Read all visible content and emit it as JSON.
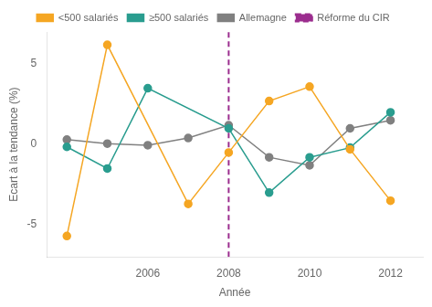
{
  "chart_data": {
    "type": "line",
    "xlabel": "Année",
    "ylabel": "Ecart à la tendance (%)",
    "series": [
      {
        "name": "<500 salariés",
        "color": "#f5a623",
        "marker": "circle",
        "x": [
          2004,
          2005,
          2007,
          2008,
          2009,
          2010,
          2011,
          2012
        ],
        "values": [
          -5.7,
          6.2,
          -3.7,
          -0.5,
          2.7,
          3.6,
          -0.3,
          -3.5
        ]
      },
      {
        "name": "≥500 salariés",
        "color": "#2a9d8f",
        "marker": "circle",
        "x": [
          2004,
          2005,
          2006,
          2008,
          2009,
          2010,
          2011,
          2012
        ],
        "values": [
          -0.15,
          -1.5,
          3.5,
          1.0,
          -3.0,
          -0.8,
          -0.2,
          2.0
        ]
      },
      {
        "name": "Allemagne",
        "color": "#808080",
        "marker": "circle",
        "x": [
          2004,
          2005,
          2006,
          2007,
          2008,
          2009,
          2010,
          2011,
          2012
        ],
        "values": [
          0.3,
          0.05,
          -0.05,
          0.4,
          1.2,
          -0.8,
          -1.3,
          1.0,
          1.5
        ]
      }
    ],
    "reference_lines": [
      {
        "x": 2008,
        "name": "Réforme du CIR",
        "color": "#9b2d8e",
        "line_style": "dashed"
      }
    ],
    "xlim": [
      2003.5,
      2012.8
    ],
    "xticks": [
      2006,
      2008,
      2010,
      2012
    ],
    "ylim": [
      -7,
      7
    ],
    "yticks": [
      -5,
      0,
      5
    ],
    "grid": false,
    "legend": "top"
  }
}
